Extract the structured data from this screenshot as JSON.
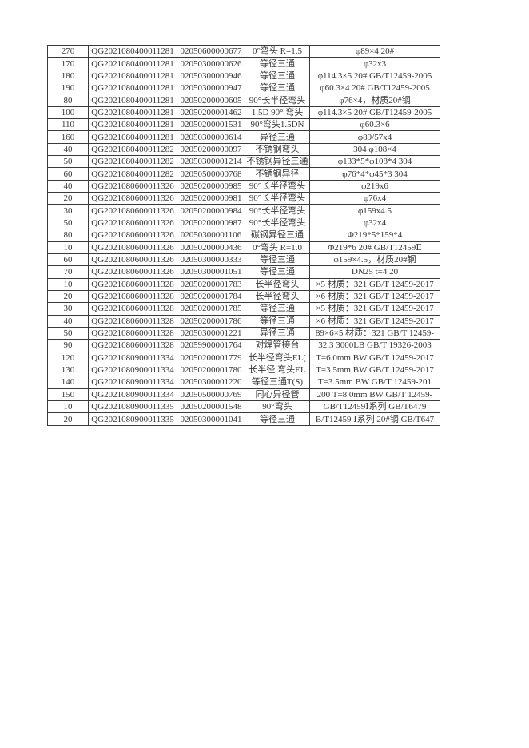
{
  "colors": {
    "background": "#ffffff",
    "text": "#383838",
    "border": "#3a3a3a"
  },
  "table": {
    "column_keys": [
      "quantity",
      "requisition-no",
      "material-code",
      "item-name",
      "specification"
    ],
    "rows": [
      [
        "270",
        "QG2021080400011281",
        "02050600000677",
        "0°弯头 R=1.5",
        "φ89×4  20#"
      ],
      [
        "170",
        "QG2021080400011281",
        "02050300000626",
        "等径三通",
        "φ32x3"
      ],
      [
        "180",
        "QG2021080400011281",
        "02050300000946",
        "等径三通",
        "φ114.3×5  20# GB/T12459-2005"
      ],
      [
        "190",
        "QG2021080400011281",
        "02050300000947",
        "等径三通",
        "φ60.3×4  20# GB/T12459-2005"
      ],
      [
        "80",
        "QG2021080400011281",
        "02050200000605",
        "90°长半径弯头",
        "φ76×4，材质20#钢"
      ],
      [
        "100",
        "QG2021080400011281",
        "02050200001462",
        "1.5D 90° 弯头",
        "φ114.3×5  20# GB/T12459-2005"
      ],
      [
        "110",
        "QG2021080400011281",
        "02050200001531",
        "90°弯头1.5DN",
        "φ60.3×6"
      ],
      [
        "160",
        "QG2021080400011281",
        "02050300000614",
        "异径三通",
        "φ89/57x4"
      ],
      [
        "40",
        "QG2021080400011282",
        "02050200000097",
        "不锈钢弯头",
        "304   φ108×4"
      ],
      [
        "50",
        "QG2021080400011282",
        "02050300001214",
        "不锈钢异径三通",
        "φ133*5*φ108*4  304"
      ],
      [
        "60",
        "QG2021080400011282",
        "02050500000768",
        "不锈钢异径",
        "φ76*4*φ45*3  304"
      ],
      [
        "40",
        "QG2021080600011326",
        "02050200000985",
        "90°长半径弯头",
        "φ219x6"
      ],
      [
        "20",
        "QG2021080600011326",
        "02050200000981",
        "90°长半径弯头",
        "φ76x4"
      ],
      [
        "30",
        "QG2021080600011326",
        "02050200000984",
        "90°长半径弯头",
        "φ159x4.5"
      ],
      [
        "50",
        "QG2021080600011326",
        "02050200000987",
        "90°长半径弯头",
        "φ32x4"
      ],
      [
        "80",
        "QG2021080600011326",
        "02050300001106",
        "碳钢异径三通",
        "Φ219*5*159*4"
      ],
      [
        "10",
        "QG2021080600011326",
        "02050200000436",
        "0°弯头 R=1.0",
        "Φ219*6  20#  GB/T12459Ⅱ"
      ],
      [
        "60",
        "QG2021080600011326",
        "02050300000333",
        "等径三通",
        "φ159×4.5，材质20#钢"
      ],
      [
        "70",
        "QG2021080600011326",
        "02050300001051",
        "等径三通",
        "DN25 t=4 20"
      ],
      [
        "10",
        "QG2021080600011328",
        "02050200001783",
        "长半径弯头",
        "×5 材质：321 GB/T 12459-2017"
      ],
      [
        "20",
        "QG2021080600011328",
        "02050200001784",
        "长半径弯头",
        "×6 材质：321 GB/T 12459-2017"
      ],
      [
        "30",
        "QG2021080600011328",
        "02050200001785",
        "等径三通",
        "×5 材质：321 GB/T 12459-2017"
      ],
      [
        "40",
        "QG2021080600011328",
        "02050200001786",
        "等径三通",
        "×6 材质：321 GB/T 12459-2017"
      ],
      [
        "50",
        "QG2021080600011328",
        "02050300001221",
        "异径三通",
        "89×6×5 材质：321 GB/T 12459-"
      ],
      [
        "90",
        "QG2021080600011328",
        "02059900001764",
        "对焊管接台",
        "32.3   3000LB GB/T 19326-2003"
      ],
      [
        "120",
        "QG2021080900011334",
        "02050200001779",
        "长半径弯头EL(",
        "T=6.0mm BW  GB/T 12459-2017"
      ],
      [
        "130",
        "QG2021080900011334",
        "02050200001780",
        "长半径 弯头EL",
        "T=3.5mm BW  GB/T 12459-2017"
      ],
      [
        "140",
        "QG2021080900011334",
        "02050300001220",
        "等径三通T(S)",
        "T=3.5mm BW   GB/T 12459-201"
      ],
      [
        "150",
        "QG2021080900011334",
        "02050500000769",
        "同心异径管",
        "200  T=8.0mm BW   GB/T 12459-"
      ],
      [
        "10",
        "QG2021080900011335",
        "02050200001548",
        "90°弯头",
        "GB/T12459Ⅰ系列 GB/T6479"
      ],
      [
        "20",
        "QG2021080900011335",
        "02050300001041",
        "等径三通",
        "B/T12459 Ⅰ系列  20#钢 GB/T647"
      ]
    ]
  }
}
